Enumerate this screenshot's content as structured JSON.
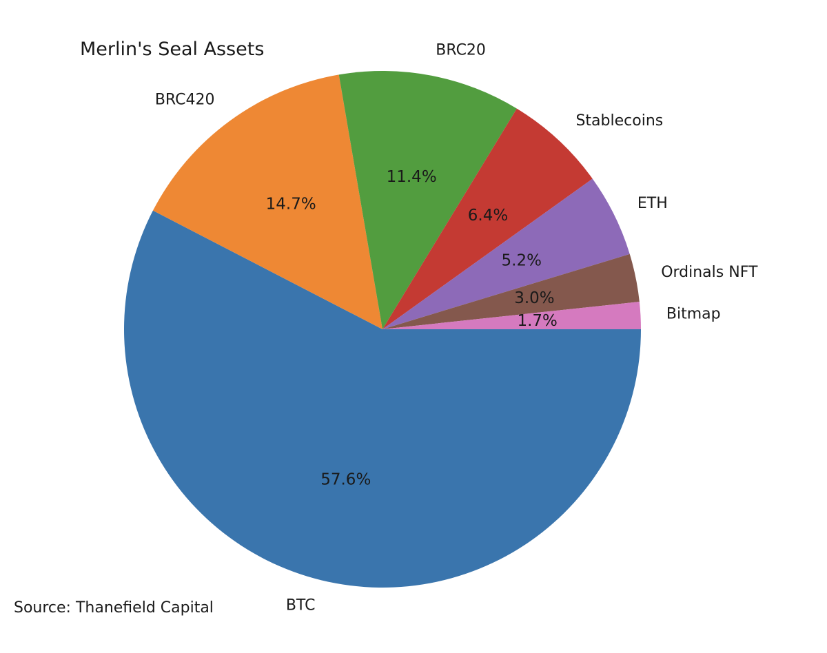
{
  "chart_data": {
    "type": "pie",
    "title": "Merlin's Seal Assets",
    "source": "Source: Thanefield Capital",
    "start": "3 o'clock",
    "direction": "clockwise",
    "slices": [
      {
        "label": "BTC",
        "value": 57.6,
        "pct_label": "57.6%",
        "color": "#3a75ad"
      },
      {
        "label": "BRC420",
        "value": 14.7,
        "pct_label": "14.7%",
        "color": "#ee8834"
      },
      {
        "label": "BRC20",
        "value": 11.4,
        "pct_label": "11.4%",
        "color": "#529d3f"
      },
      {
        "label": "Stablecoins",
        "value": 6.4,
        "pct_label": "6.4%",
        "color": "#c43a33"
      },
      {
        "label": "ETH",
        "value": 5.2,
        "pct_label": "5.2%",
        "color": "#8d6ab8"
      },
      {
        "label": "Ordinals NFT",
        "value": 3.0,
        "pct_label": "3.0%",
        "color": "#84584d"
      },
      {
        "label": "Bitmap",
        "value": 1.7,
        "pct_label": "1.7%",
        "color": "#d57abf"
      }
    ]
  }
}
